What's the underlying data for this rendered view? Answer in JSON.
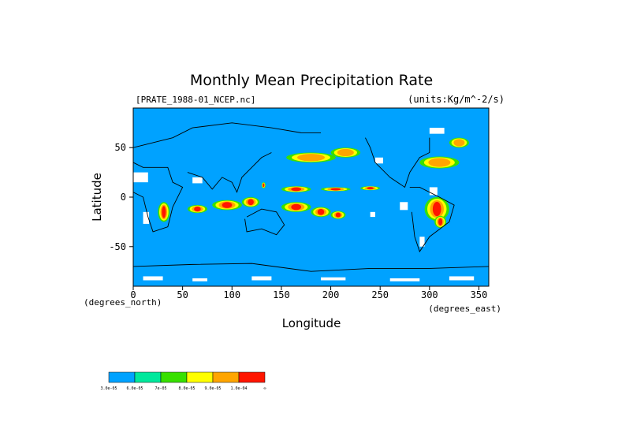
{
  "chart_data": {
    "type": "heatmap",
    "title": "Monthly Mean Precipitation Rate",
    "subtitle_left": "[PRATE_1988-01_NCEP.nc]",
    "subtitle_right": "(units:Kg/m^-2/s)",
    "xlabel": "Longitude",
    "ylabel": "Latitude",
    "x_unit_label": "(degrees_north)",
    "x_unit_label_right": "(degrees_east)",
    "xlim": [
      0,
      360
    ],
    "ylim": [
      -90,
      90
    ],
    "x_ticks": [
      0,
      50,
      100,
      150,
      200,
      250,
      300,
      350
    ],
    "y_ticks": [
      50,
      0,
      -50
    ],
    "grid": false,
    "legend": {
      "placement": "bottom-left",
      "labels": [
        "3.0e-05",
        "6.0e-05",
        "7e-05",
        "8.0e-05",
        "9.0e-05",
        "1.0e-04",
        "∞"
      ],
      "colors": [
        "#00a2ff",
        "#00e89c",
        "#38e000",
        "#ffff00",
        "#ffa500",
        "#ff1500"
      ]
    },
    "background_color": "#00a2ff",
    "missing_color": "#ffffff",
    "coastline_color": "#000000",
    "bands": [
      {
        "name": "itcz-pacific",
        "cells": [
          [
            130,
            12,
            4,
            3,
            1
          ],
          [
            150,
            8,
            30,
            3,
            1
          ],
          [
            190,
            8,
            30,
            2,
            1
          ],
          [
            230,
            9,
            20,
            2,
            1
          ]
        ]
      },
      {
        "name": "indian-ocean",
        "cells": [
          [
            55,
            -12,
            20,
            4,
            1
          ],
          [
            80,
            -8,
            30,
            5,
            1
          ],
          [
            110,
            -5,
            18,
            5,
            1
          ]
        ]
      },
      {
        "name": "south-pacific-cz",
        "cells": [
          [
            150,
            -10,
            30,
            5,
            1
          ],
          [
            180,
            -15,
            20,
            5,
            1
          ],
          [
            200,
            -18,
            15,
            4,
            1
          ]
        ]
      },
      {
        "name": "africa-south",
        "cells": [
          [
            25,
            -15,
            12,
            10,
            1
          ]
        ]
      },
      {
        "name": "south-america",
        "cells": [
          [
            295,
            -12,
            25,
            12,
            1
          ],
          [
            305,
            -25,
            12,
            6,
            1
          ]
        ]
      },
      {
        "name": "north-pacific-storm",
        "cells": [
          [
            155,
            40,
            50,
            5,
            0.7
          ],
          [
            200,
            45,
            30,
            5,
            0.7
          ]
        ]
      },
      {
        "name": "north-atlantic-storm",
        "cells": [
          [
            290,
            35,
            40,
            6,
            0.7
          ],
          [
            320,
            55,
            20,
            5,
            0.7
          ]
        ]
      }
    ]
  }
}
